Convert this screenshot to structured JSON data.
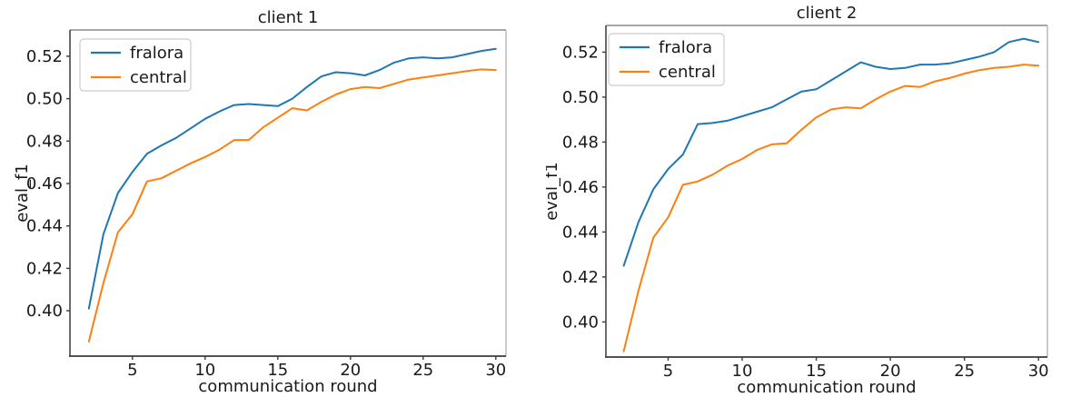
{
  "figure": {
    "background": "#ffffff",
    "text_color": "#1a1a1a",
    "spine_dark": "#3a3a3a",
    "spine_light_top": "#8a8a8a",
    "spine_light_right": "#b5b5b5",
    "legend_border": "#cccccc"
  },
  "chart_data": [
    {
      "type": "line",
      "title": "client 1",
      "xlabel": "communication round",
      "ylabel": "eval_f1",
      "legend_position": "upper left",
      "grid": false,
      "x": [
        2,
        3,
        4,
        5,
        6,
        7,
        8,
        9,
        10,
        11,
        12,
        13,
        14,
        15,
        16,
        17,
        18,
        19,
        20,
        21,
        22,
        23,
        24,
        25,
        26,
        27,
        28,
        29,
        30
      ],
      "series": [
        {
          "name": "fralora",
          "color": "#1f77b4",
          "values": [
            0.401,
            0.436,
            0.4555,
            0.4655,
            0.474,
            0.478,
            0.4815,
            0.486,
            0.4905,
            0.494,
            0.497,
            0.4975,
            0.497,
            0.4965,
            0.5,
            0.5055,
            0.5105,
            0.5125,
            0.512,
            0.511,
            0.5135,
            0.517,
            0.519,
            0.5195,
            0.519,
            0.5195,
            0.521,
            0.5225,
            0.5235
          ]
        },
        {
          "name": "central",
          "color": "#ff7f0e",
          "values": [
            0.3855,
            0.413,
            0.437,
            0.4455,
            0.461,
            0.4625,
            0.466,
            0.4695,
            0.4725,
            0.476,
            0.4805,
            0.4805,
            0.4865,
            0.491,
            0.4955,
            0.4945,
            0.4985,
            0.502,
            0.5045,
            0.5055,
            0.505,
            0.507,
            0.509,
            0.51,
            0.511,
            0.512,
            0.513,
            0.5138,
            0.5135
          ]
        }
      ],
      "xtick_values": [
        5,
        10,
        15,
        20,
        25,
        30
      ],
      "xtick_labels": [
        "5",
        "10",
        "15",
        "20",
        "25",
        "30"
      ],
      "ytick_values": [
        0.4,
        0.42,
        0.44,
        0.46,
        0.48,
        0.5,
        0.52
      ],
      "ytick_labels": [
        "0.40",
        "0.42",
        "0.44",
        "0.46",
        "0.48",
        "0.50",
        "0.52"
      ],
      "xlim": [
        0.7,
        30.7
      ],
      "ylim": [
        0.3786,
        0.5324
      ]
    },
    {
      "type": "line",
      "title": "client 2",
      "xlabel": "communication round",
      "ylabel": "eval_f1",
      "legend_position": "upper left",
      "grid": false,
      "x": [
        2,
        3,
        4,
        5,
        6,
        7,
        8,
        9,
        10,
        11,
        12,
        13,
        14,
        15,
        16,
        17,
        18,
        19,
        20,
        21,
        22,
        23,
        24,
        25,
        26,
        27,
        28,
        29,
        30
      ],
      "series": [
        {
          "name": "fralora",
          "color": "#1f77b4",
          "values": [
            0.425,
            0.4445,
            0.459,
            0.468,
            0.4745,
            0.488,
            0.4885,
            0.4895,
            0.4915,
            0.4935,
            0.4955,
            0.499,
            0.5025,
            0.5035,
            0.5075,
            0.5115,
            0.5155,
            0.5135,
            0.5125,
            0.513,
            0.5145,
            0.5145,
            0.515,
            0.5165,
            0.518,
            0.52,
            0.5245,
            0.526,
            0.5245
          ]
        },
        {
          "name": "central",
          "color": "#ff7f0e",
          "values": [
            0.387,
            0.414,
            0.4375,
            0.4465,
            0.461,
            0.4625,
            0.4655,
            0.4695,
            0.4725,
            0.4765,
            0.479,
            0.4795,
            0.4855,
            0.491,
            0.4945,
            0.4955,
            0.495,
            0.499,
            0.5025,
            0.505,
            0.5045,
            0.507,
            0.5085,
            0.5105,
            0.512,
            0.513,
            0.5135,
            0.5145,
            0.514
          ]
        }
      ],
      "xtick_values": [
        5,
        10,
        15,
        20,
        25,
        30
      ],
      "xtick_labels": [
        "5",
        "10",
        "15",
        "20",
        "25",
        "30"
      ],
      "ytick_values": [
        0.4,
        0.42,
        0.44,
        0.46,
        0.48,
        0.5,
        0.52
      ],
      "ytick_labels": [
        "0.40",
        "0.42",
        "0.44",
        "0.46",
        "0.48",
        "0.50",
        "0.52"
      ],
      "xlim": [
        0.8,
        30.6
      ],
      "ylim": [
        0.3844,
        0.5319
      ]
    }
  ]
}
